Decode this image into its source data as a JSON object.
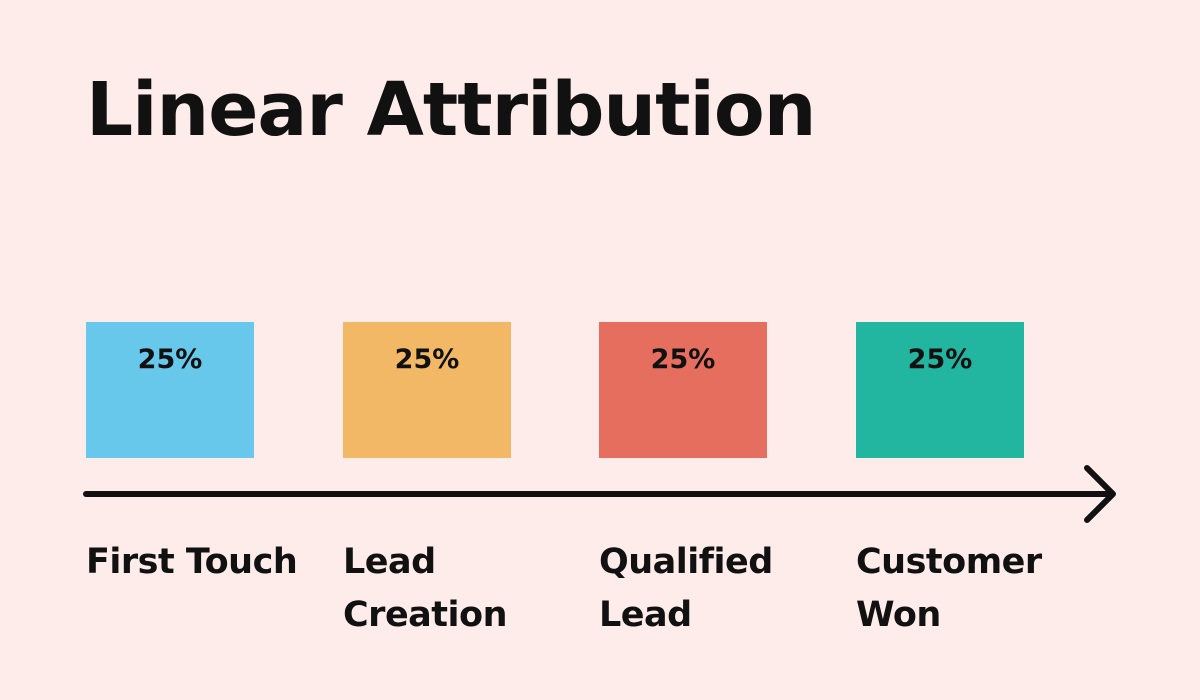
{
  "title": "Linear Attribution",
  "stages": [
    {
      "label": "First Touch",
      "percent": "25%",
      "color": "#67c8eb"
    },
    {
      "label": "Lead\nCreation",
      "percent": "25%",
      "color": "#f2b865"
    },
    {
      "label": "Qualified\nLead",
      "percent": "25%",
      "color": "#e66e5f"
    },
    {
      "label": "Customer\nWon",
      "percent": "25%",
      "color": "#22b59f"
    }
  ],
  "colors": {
    "background": "#fdecea",
    "text": "#111111",
    "axis": "#111111"
  }
}
